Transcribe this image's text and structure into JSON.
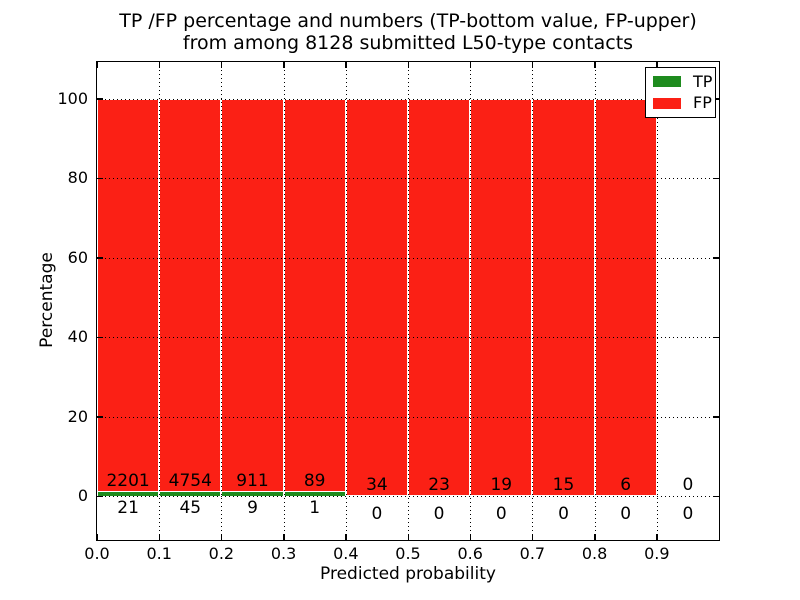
{
  "chart_data": {
    "type": "bar",
    "stacked": true,
    "title_line1": "TP /FP percentage and numbers (TP-bottom value, FP-upper)",
    "title_line2": "from among 8128 submitted L50-type contacts",
    "xlabel": "Predicted probability",
    "ylabel": "Percentage",
    "x_tick_labels": [
      "0.0",
      "0.1",
      "0.2",
      "0.3",
      "0.4",
      "0.5",
      "0.6",
      "0.7",
      "0.8",
      "0.9"
    ],
    "x_ticks": [
      0.0,
      0.1,
      0.2,
      0.3,
      0.4,
      0.5,
      0.6,
      0.7,
      0.8,
      0.9
    ],
    "y_tick_labels": [
      "0",
      "20",
      "40",
      "60",
      "80",
      "100"
    ],
    "y_ticks": [
      0,
      20,
      40,
      60,
      80,
      100
    ],
    "xlim": [
      0.0,
      1.0
    ],
    "ylim": [
      -11,
      109
    ],
    "grid": "dotted both axes, drawn above bars",
    "legend": {
      "position": "upper right",
      "entries": [
        {
          "label": "TP",
          "color": "#1e8b1e"
        },
        {
          "label": "FP",
          "color": "#fb2015"
        }
      ]
    },
    "colors": {
      "tp": "#1e8b1e",
      "fp": "#fb2015",
      "text": "#000000",
      "grid": "#000000",
      "bar_edge": "#ffffff"
    },
    "bins": [
      {
        "x_start": 0.0,
        "x_end": 0.1,
        "tp_count": 21,
        "fp_count": 2201,
        "tp_pct": 0.95,
        "fp_pct": 99.05
      },
      {
        "x_start": 0.1,
        "x_end": 0.2,
        "tp_count": 45,
        "fp_count": 4754,
        "tp_pct": 0.94,
        "fp_pct": 99.06
      },
      {
        "x_start": 0.2,
        "x_end": 0.3,
        "tp_count": 9,
        "fp_count": 911,
        "tp_pct": 0.98,
        "fp_pct": 99.02
      },
      {
        "x_start": 0.3,
        "x_end": 0.4,
        "tp_count": 1,
        "fp_count": 89,
        "tp_pct": 1.11,
        "fp_pct": 98.89
      },
      {
        "x_start": 0.4,
        "x_end": 0.5,
        "tp_count": 0,
        "fp_count": 34,
        "tp_pct": 0,
        "fp_pct": 100
      },
      {
        "x_start": 0.5,
        "x_end": 0.6,
        "tp_count": 0,
        "fp_count": 23,
        "tp_pct": 0,
        "fp_pct": 100
      },
      {
        "x_start": 0.6,
        "x_end": 0.7,
        "tp_count": 0,
        "fp_count": 19,
        "tp_pct": 0,
        "fp_pct": 100
      },
      {
        "x_start": 0.7,
        "x_end": 0.8,
        "tp_count": 0,
        "fp_count": 15,
        "tp_pct": 0,
        "fp_pct": 100
      },
      {
        "x_start": 0.8,
        "x_end": 0.9,
        "tp_count": 0,
        "fp_count": 6,
        "tp_pct": 0,
        "fp_pct": 100
      },
      {
        "x_start": 0.9,
        "x_end": 1.0,
        "tp_count": 0,
        "fp_count": 0,
        "tp_pct": 0,
        "fp_pct": 0
      }
    ]
  }
}
